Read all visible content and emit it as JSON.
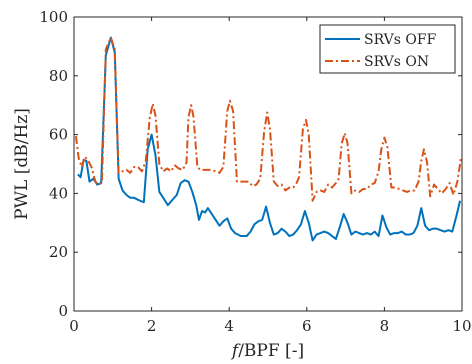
{
  "chart_data": {
    "type": "line",
    "xlabel": "f/BPF [-]",
    "ylabel": "PWL [dB/Hz]",
    "xlim": [
      0,
      10
    ],
    "ylim": [
      0,
      100
    ],
    "xticks": [
      0,
      2,
      4,
      6,
      8,
      10
    ],
    "yticks": [
      0,
      20,
      40,
      60,
      80,
      100
    ],
    "grid": false,
    "box": true,
    "legend_position": "top-right",
    "series": [
      {
        "name": "SRVs OFF",
        "color": "#0072BD",
        "line_style": "solid",
        "points": [
          [
            0.1,
            46.5
          ],
          [
            0.17,
            45.5
          ],
          [
            0.25,
            51.5
          ],
          [
            0.32,
            51
          ],
          [
            0.4,
            44
          ],
          [
            0.5,
            45
          ],
          [
            0.6,
            43
          ],
          [
            0.7,
            43.5
          ],
          [
            0.82,
            87
          ],
          [
            0.95,
            93
          ],
          [
            1.05,
            88
          ],
          [
            1.15,
            45
          ],
          [
            1.25,
            41
          ],
          [
            1.35,
            39.5
          ],
          [
            1.45,
            38.5
          ],
          [
            1.55,
            38.5
          ],
          [
            1.7,
            37.5
          ],
          [
            1.8,
            37
          ],
          [
            1.9,
            55
          ],
          [
            2.0,
            60
          ],
          [
            2.1,
            53
          ],
          [
            2.2,
            40.5
          ],
          [
            2.3,
            38.5
          ],
          [
            2.42,
            36
          ],
          [
            2.55,
            38
          ],
          [
            2.65,
            39.5
          ],
          [
            2.75,
            43.5
          ],
          [
            2.85,
            44.5
          ],
          [
            2.95,
            44
          ],
          [
            3.05,
            40.5
          ],
          [
            3.15,
            36
          ],
          [
            3.22,
            31
          ],
          [
            3.3,
            34
          ],
          [
            3.38,
            33.5
          ],
          [
            3.45,
            35
          ],
          [
            3.55,
            33
          ],
          [
            3.65,
            31
          ],
          [
            3.75,
            29
          ],
          [
            3.85,
            30.5
          ],
          [
            3.95,
            31.5
          ],
          [
            4.05,
            28
          ],
          [
            4.15,
            26.5
          ],
          [
            4.3,
            25.5
          ],
          [
            4.45,
            25.5
          ],
          [
            4.55,
            27
          ],
          [
            4.65,
            29.5
          ],
          [
            4.75,
            30.5
          ],
          [
            4.85,
            31
          ],
          [
            4.95,
            35.5
          ],
          [
            5.05,
            30
          ],
          [
            5.15,
            26
          ],
          [
            5.25,
            26.5
          ],
          [
            5.35,
            28
          ],
          [
            5.45,
            27
          ],
          [
            5.55,
            25.5
          ],
          [
            5.65,
            26
          ],
          [
            5.75,
            27.5
          ],
          [
            5.85,
            29.5
          ],
          [
            5.95,
            34
          ],
          [
            6.05,
            30
          ],
          [
            6.15,
            24
          ],
          [
            6.25,
            26
          ],
          [
            6.35,
            26.5
          ],
          [
            6.45,
            27
          ],
          [
            6.55,
            26.5
          ],
          [
            6.65,
            25.5
          ],
          [
            6.75,
            24.5
          ],
          [
            6.85,
            28.5
          ],
          [
            6.95,
            33
          ],
          [
            7.05,
            30
          ],
          [
            7.15,
            26
          ],
          [
            7.25,
            27
          ],
          [
            7.35,
            26.5
          ],
          [
            7.45,
            26
          ],
          [
            7.55,
            26.5
          ],
          [
            7.65,
            26
          ],
          [
            7.75,
            27
          ],
          [
            7.85,
            25.5
          ],
          [
            7.95,
            32.5
          ],
          [
            8.05,
            28.5
          ],
          [
            8.15,
            26
          ],
          [
            8.25,
            26.5
          ],
          [
            8.35,
            26.5
          ],
          [
            8.45,
            27
          ],
          [
            8.55,
            26
          ],
          [
            8.65,
            26
          ],
          [
            8.75,
            26.5
          ],
          [
            8.85,
            29
          ],
          [
            8.95,
            35
          ],
          [
            9.05,
            29
          ],
          [
            9.15,
            27.5
          ],
          [
            9.25,
            28
          ],
          [
            9.35,
            28
          ],
          [
            9.45,
            27.5
          ],
          [
            9.55,
            27
          ],
          [
            9.65,
            27.5
          ],
          [
            9.75,
            27
          ],
          [
            9.85,
            32
          ],
          [
            9.95,
            37.5
          ]
        ]
      },
      {
        "name": "SRVs ON",
        "color": "#D95319",
        "line_style": "dashdot",
        "points": [
          [
            0.05,
            59.5
          ],
          [
            0.12,
            52
          ],
          [
            0.2,
            49
          ],
          [
            0.28,
            52.5
          ],
          [
            0.35,
            51.5
          ],
          [
            0.45,
            49
          ],
          [
            0.55,
            44
          ],
          [
            0.65,
            43
          ],
          [
            0.72,
            44
          ],
          [
            0.82,
            89
          ],
          [
            0.95,
            93
          ],
          [
            1.05,
            89
          ],
          [
            1.15,
            47
          ],
          [
            1.25,
            47.5
          ],
          [
            1.35,
            48
          ],
          [
            1.45,
            47
          ],
          [
            1.55,
            49
          ],
          [
            1.65,
            49
          ],
          [
            1.75,
            47.5
          ],
          [
            1.85,
            51
          ],
          [
            1.95,
            65.5
          ],
          [
            2.03,
            70.5
          ],
          [
            2.1,
            66.5
          ],
          [
            2.2,
            50
          ],
          [
            2.3,
            47.5
          ],
          [
            2.4,
            48.5
          ],
          [
            2.5,
            47.5
          ],
          [
            2.6,
            49.5
          ],
          [
            2.7,
            48.5
          ],
          [
            2.8,
            48
          ],
          [
            2.9,
            50.5
          ],
          [
            2.95,
            66
          ],
          [
            3.02,
            70
          ],
          [
            3.08,
            66
          ],
          [
            3.18,
            49
          ],
          [
            3.25,
            48
          ],
          [
            3.35,
            48
          ],
          [
            3.45,
            48
          ],
          [
            3.55,
            48
          ],
          [
            3.65,
            47.5
          ],
          [
            3.75,
            47
          ],
          [
            3.85,
            49
          ],
          [
            3.95,
            68
          ],
          [
            4.02,
            71.5
          ],
          [
            4.1,
            68
          ],
          [
            4.2,
            44
          ],
          [
            4.3,
            44
          ],
          [
            4.4,
            44
          ],
          [
            4.5,
            44
          ],
          [
            4.6,
            42.5
          ],
          [
            4.7,
            43
          ],
          [
            4.8,
            45
          ],
          [
            4.9,
            61
          ],
          [
            4.98,
            67.5
          ],
          [
            5.05,
            62
          ],
          [
            5.15,
            44
          ],
          [
            5.25,
            42.5
          ],
          [
            5.35,
            43
          ],
          [
            5.45,
            41
          ],
          [
            5.55,
            42
          ],
          [
            5.65,
            42
          ],
          [
            5.72,
            43
          ],
          [
            5.8,
            45.5
          ],
          [
            5.9,
            62
          ],
          [
            5.98,
            65
          ],
          [
            6.05,
            60
          ],
          [
            6.15,
            37.5
          ],
          [
            6.25,
            40.5
          ],
          [
            6.35,
            41
          ],
          [
            6.45,
            40.5
          ],
          [
            6.55,
            43
          ],
          [
            6.65,
            42
          ],
          [
            6.75,
            43.5
          ],
          [
            6.82,
            45
          ],
          [
            6.9,
            57
          ],
          [
            6.98,
            60.5
          ],
          [
            7.05,
            57
          ],
          [
            7.15,
            40
          ],
          [
            7.25,
            41
          ],
          [
            7.35,
            40.5
          ],
          [
            7.45,
            41.5
          ],
          [
            7.55,
            41.5
          ],
          [
            7.65,
            43
          ],
          [
            7.75,
            43.5
          ],
          [
            7.85,
            47.5
          ],
          [
            7.92,
            55
          ],
          [
            8.0,
            59
          ],
          [
            8.08,
            55.5
          ],
          [
            8.18,
            42
          ],
          [
            8.28,
            42
          ],
          [
            8.38,
            41.5
          ],
          [
            8.48,
            41
          ],
          [
            8.58,
            40.5
          ],
          [
            8.68,
            41
          ],
          [
            8.78,
            41
          ],
          [
            8.88,
            44
          ],
          [
            8.95,
            51
          ],
          [
            9.02,
            55
          ],
          [
            9.1,
            50.5
          ],
          [
            9.18,
            39
          ],
          [
            9.28,
            43
          ],
          [
            9.38,
            41.5
          ],
          [
            9.48,
            40
          ],
          [
            9.58,
            41.5
          ],
          [
            9.68,
            43.5
          ],
          [
            9.78,
            39.5
          ],
          [
            9.88,
            44
          ],
          [
            9.98,
            52.5
          ]
        ]
      }
    ]
  }
}
